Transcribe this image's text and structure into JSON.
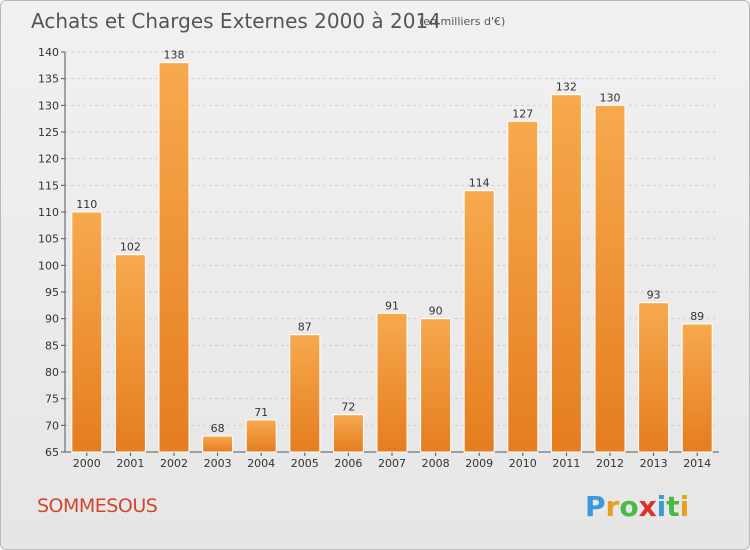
{
  "title": "Achats et Charges Externes 2000 à 2014",
  "unit_note": "(en milliers d'€)",
  "commune": "SOMMESOUS",
  "brand": {
    "text": "Proxiti",
    "letters": [
      "P",
      "r",
      "o",
      "x",
      "i",
      "t",
      "i"
    ]
  },
  "colors": {
    "bar_light": "#f7a94e",
    "bar_dark": "#e57d1f",
    "commune_text": "#d2462d",
    "grid": "#cfcfcf"
  },
  "chart_data": {
    "type": "bar",
    "title": "Achats et Charges Externes 2000 à 2014",
    "subtitle": "(en milliers d'€)",
    "xlabel": "",
    "ylabel": "",
    "categories": [
      "2000",
      "2001",
      "2002",
      "2003",
      "2004",
      "2005",
      "2006",
      "2007",
      "2008",
      "2009",
      "2010",
      "2011",
      "2012",
      "2013",
      "2014"
    ],
    "values": [
      110,
      102,
      138,
      68,
      71,
      87,
      72,
      91,
      90,
      114,
      127,
      132,
      130,
      93,
      89
    ],
    "ylim": [
      65,
      140
    ],
    "yticks": [
      65,
      70,
      75,
      80,
      85,
      90,
      95,
      100,
      105,
      110,
      115,
      120,
      125,
      130,
      135,
      140
    ],
    "grid": true,
    "legend": "none"
  }
}
